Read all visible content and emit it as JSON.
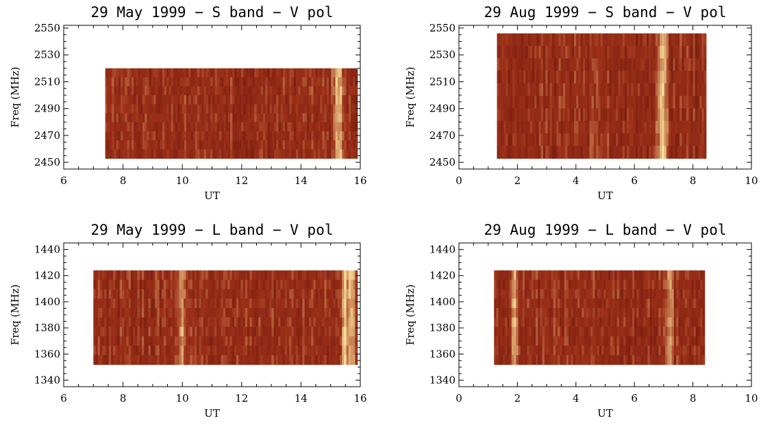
{
  "figure": {
    "colors": {
      "low": "#5a0d0a",
      "mid": "#9c3018",
      "high": "#fde7a0",
      "axis": "#000000",
      "background": "#ffffff"
    }
  },
  "chart_data": [
    {
      "type": "heatmap",
      "title": "29 May 1999 − S band − V pol",
      "xlabel": "UT",
      "ylabel": "Freq (MHz)",
      "xlim": [
        6,
        16
      ],
      "ylim": [
        2445,
        2552
      ],
      "xticks": [
        6,
        8,
        10,
        12,
        14,
        16
      ],
      "yticks": [
        2450,
        2470,
        2490,
        2510,
        2530,
        2550
      ],
      "data_extent": {
        "x": [
          7.4,
          15.9
        ],
        "y": [
          2453,
          2520
        ]
      },
      "bright_bands_ut": [
        15.2,
        15.3
      ],
      "grid": false
    },
    {
      "type": "heatmap",
      "title": "29 Aug 1999 − S band − V pol",
      "xlabel": "UT",
      "ylabel": "Freq (MHz)",
      "xlim": [
        0,
        10
      ],
      "ylim": [
        2445,
        2552
      ],
      "xticks": [
        0,
        2,
        4,
        6,
        8,
        10
      ],
      "yticks": [
        2450,
        2470,
        2490,
        2510,
        2530,
        2550
      ],
      "data_extent": {
        "x": [
          1.3,
          8.45
        ],
        "y": [
          2453,
          2546
        ]
      },
      "bright_bands_ut": [
        6.9,
        7.0
      ],
      "grid": false
    },
    {
      "type": "heatmap",
      "title": "29 May 1999 − L band − V pol",
      "xlabel": "UT",
      "ylabel": "Freq (MHz)",
      "xlim": [
        6,
        16
      ],
      "ylim": [
        1335,
        1445
      ],
      "xticks": [
        6,
        8,
        10,
        12,
        14,
        16
      ],
      "yticks": [
        1340,
        1360,
        1380,
        1400,
        1420,
        1440
      ],
      "data_extent": {
        "x": [
          7.0,
          15.9
        ],
        "y": [
          1352,
          1424
        ]
      },
      "bright_bands_ut": [
        10.0,
        15.5,
        15.7
      ],
      "grid": false
    },
    {
      "type": "heatmap",
      "title": "29 Aug 1999 − L band − V pol",
      "xlabel": "UT",
      "ylabel": "Freq (MHz)",
      "xlim": [
        0,
        10
      ],
      "ylim": [
        1335,
        1445
      ],
      "xticks": [
        0,
        2,
        4,
        6,
        8,
        10
      ],
      "yticks": [
        1340,
        1360,
        1380,
        1400,
        1420,
        1440
      ],
      "data_extent": {
        "x": [
          1.2,
          8.4
        ],
        "y": [
          1352,
          1424
        ]
      },
      "bright_bands_ut": [
        1.9,
        7.2
      ],
      "grid": false
    }
  ]
}
